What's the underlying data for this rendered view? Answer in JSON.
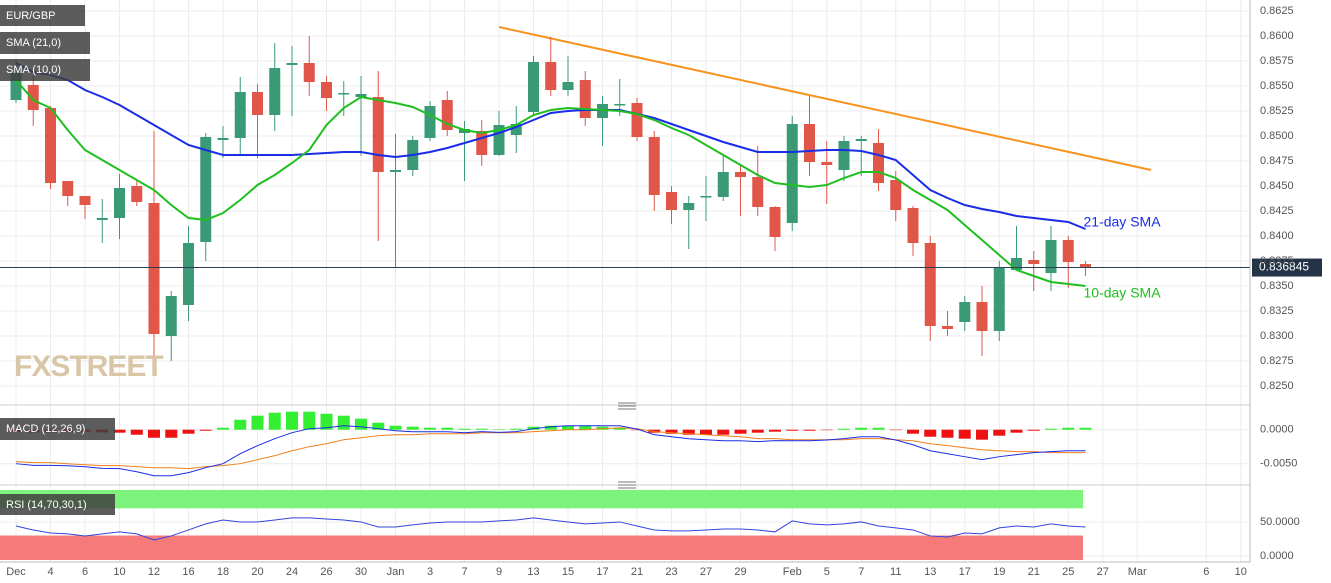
{
  "chart_data": [
    {
      "type": "candlestick",
      "title": "EUR/GBP",
      "watermark": "FXSTREET",
      "categories": [
        "Dec",
        null,
        "4",
        null,
        "6",
        null,
        "10",
        null,
        "12",
        null,
        "16",
        null,
        "18",
        null,
        "20",
        null,
        "24",
        null,
        "26",
        null,
        "30",
        null,
        "Jan",
        null,
        "3",
        null,
        "7",
        null,
        "9",
        null,
        "13",
        null,
        "15",
        null,
        "17",
        null,
        "21",
        null,
        "23",
        null,
        "27",
        null,
        "29",
        null,
        null,
        "Feb",
        null,
        "5",
        null,
        "7",
        null,
        "11",
        null,
        "13",
        null,
        "17",
        null,
        "19",
        null,
        "21",
        null,
        "25",
        null,
        "27",
        null,
        "Mar",
        null,
        null,
        null,
        "6",
        null,
        "10"
      ],
      "open": [
        0.8536,
        0.8551,
        0.8528,
        0.8455,
        0.844,
        0.8416,
        0.8418,
        0.845,
        0.8433,
        0.83,
        0.8331,
        0.8394,
        0.8496,
        0.8498,
        0.8544,
        0.8521,
        0.8571,
        0.8573,
        0.8554,
        0.8542,
        0.8539,
        0.8539,
        0.8464,
        0.8466,
        0.8498,
        0.8536,
        0.8503,
        0.8505,
        0.8481,
        0.8501,
        0.8524,
        0.8574,
        0.8546,
        0.8556,
        0.8518,
        0.8531,
        0.8533,
        0.8499,
        0.8444,
        0.8426,
        0.8439,
        0.8439,
        0.8464,
        0.8459,
        0.8429,
        0.8413,
        0.8512,
        0.8474,
        0.8466,
        0.8495,
        0.8493,
        0.8456,
        0.8428,
        0.8393,
        0.831,
        0.8314,
        0.8334,
        0.8305,
        0.8366,
        0.8376,
        0.8363,
        0.8396,
        0.8372,
        null,
        null,
        null,
        null,
        null,
        null,
        null,
        null,
        null
      ],
      "high": [
        0.8576,
        0.856,
        0.853,
        0.8455,
        0.844,
        0.8437,
        0.8462,
        0.8455,
        0.8505,
        0.8345,
        0.841,
        0.8503,
        0.851,
        0.8559,
        0.8552,
        0.8593,
        0.859,
        0.86,
        0.856,
        0.8555,
        0.856,
        0.8565,
        0.8502,
        0.85,
        0.8535,
        0.8545,
        0.8515,
        0.8516,
        0.8525,
        0.853,
        0.858,
        0.8599,
        0.858,
        0.8565,
        0.854,
        0.8557,
        0.8538,
        0.8505,
        0.845,
        0.844,
        0.846,
        0.848,
        0.847,
        0.849,
        0.843,
        0.852,
        0.854,
        0.8495,
        0.85,
        0.85,
        0.8507,
        0.8465,
        0.843,
        0.84,
        0.8325,
        0.834,
        0.835,
        0.8375,
        0.841,
        0.8385,
        0.841,
        0.84,
        0.8375,
        null,
        null,
        null,
        null,
        null,
        null,
        null,
        null,
        null
      ],
      "low": [
        0.8533,
        0.851,
        0.8447,
        0.843,
        0.8417,
        0.8393,
        0.8397,
        0.843,
        0.828,
        0.8275,
        0.8315,
        0.8375,
        0.8478,
        0.848,
        0.8478,
        0.8505,
        0.852,
        0.854,
        0.8525,
        0.852,
        0.848,
        0.8395,
        0.8369,
        0.846,
        0.8495,
        0.85,
        0.8455,
        0.847,
        0.848,
        0.8483,
        0.852,
        0.854,
        0.854,
        0.851,
        0.849,
        0.852,
        0.8495,
        0.8425,
        0.8412,
        0.8387,
        0.8415,
        0.8435,
        0.842,
        0.842,
        0.8385,
        0.8405,
        0.846,
        0.8432,
        0.8455,
        0.846,
        0.8445,
        0.8415,
        0.838,
        0.8295,
        0.83,
        0.8305,
        0.828,
        0.8295,
        0.8365,
        0.8345,
        0.8345,
        0.8348,
        0.836,
        null,
        null,
        null,
        null,
        null,
        null,
        null,
        null,
        null
      ],
      "close": [
        0.8563,
        0.8526,
        0.8453,
        0.844,
        0.8431,
        0.8418,
        0.8448,
        0.8434,
        0.8302,
        0.834,
        0.8393,
        0.8499,
        0.8498,
        0.8544,
        0.8521,
        0.8568,
        0.8573,
        0.8554,
        0.8538,
        0.8543,
        0.8542,
        0.8464,
        0.8466,
        0.8496,
        0.853,
        0.8506,
        0.8507,
        0.8481,
        0.8511,
        0.8512,
        0.8574,
        0.8546,
        0.8554,
        0.8518,
        0.8532,
        0.8532,
        0.8499,
        0.8441,
        0.8426,
        0.8433,
        0.844,
        0.8464,
        0.8459,
        0.8429,
        0.8399,
        0.8512,
        0.8474,
        0.8471,
        0.8495,
        0.8497,
        0.8453,
        0.8426,
        0.8393,
        0.831,
        0.8307,
        0.8334,
        0.8305,
        0.8368,
        0.8378,
        0.8372,
        0.8396,
        0.8374,
        0.8368,
        null,
        null,
        null,
        null,
        null,
        null,
        null,
        null,
        null
      ],
      "up_color": "#3a9a76",
      "down_color": "#e0574a",
      "series": [
        {
          "name": "SMA (21,0)",
          "color": "#1a2de6",
          "values": [
            0.8573,
            0.8564,
            0.8561,
            0.8556,
            0.8546,
            0.8539,
            0.8531,
            0.8521,
            0.8511,
            0.8501,
            0.8491,
            0.8486,
            0.8481,
            0.8481,
            0.8481,
            0.8481,
            0.8481,
            0.8482,
            0.8483,
            0.8484,
            0.8484,
            0.8481,
            0.8479,
            0.8481,
            0.8484,
            0.8488,
            0.8493,
            0.8498,
            0.8503,
            0.8509,
            0.8516,
            0.8523,
            0.8525,
            0.8526,
            0.8526,
            0.8526,
            0.8522,
            0.8518,
            0.8512,
            0.8506,
            0.85,
            0.8494,
            0.8489,
            0.8484,
            0.8484,
            0.8484,
            0.8485,
            0.8486,
            0.8486,
            0.8485,
            0.8481,
            0.8476,
            0.8461,
            0.8446,
            0.8438,
            0.8431,
            0.8427,
            0.8424,
            0.842,
            0.8418,
            0.8416,
            0.8414,
            0.8407,
            null,
            null,
            null,
            null,
            null,
            null,
            null,
            null,
            null
          ]
        },
        {
          "name": "SMA (10,0)",
          "color": "#1fbf1f",
          "values": [
            0.8556,
            0.8536,
            0.8528,
            0.8506,
            0.8486,
            0.8476,
            0.8466,
            0.8456,
            0.8446,
            0.8431,
            0.8418,
            0.8416,
            0.8423,
            0.8436,
            0.8451,
            0.8461,
            0.8473,
            0.8486,
            0.8511,
            0.8528,
            0.8539,
            0.8536,
            0.8533,
            0.8529,
            0.8521,
            0.8512,
            0.8506,
            0.8503,
            0.8506,
            0.8511,
            0.8521,
            0.8526,
            0.8528,
            0.8527,
            0.8526,
            0.8525,
            0.8522,
            0.8516,
            0.8508,
            0.8501,
            0.8491,
            0.8481,
            0.8471,
            0.8461,
            0.8453,
            0.8451,
            0.8449,
            0.8451,
            0.8458,
            0.8464,
            0.8464,
            0.8458,
            0.8446,
            0.8436,
            0.8426,
            0.8411,
            0.8396,
            0.8381,
            0.8366,
            0.836,
            0.8354,
            0.8352,
            0.835,
            null,
            null,
            null,
            null,
            null,
            null,
            null,
            null,
            null
          ]
        }
      ],
      "annotations": [
        {
          "text": "21-day SMA",
          "series": 0
        },
        {
          "text": "10-day SMA",
          "series": 1
        }
      ],
      "trendline": {
        "color": "#f7931e",
        "x": [
          28,
          65.8
        ],
        "values": [
          0.8609,
          0.8466
        ]
      },
      "last_price": 0.836845,
      "ylim": [
        0.8236,
        0.8636
      ],
      "yticks": [
        0.8625,
        {
          "value": 0.86,
          "label": "0.8600"
        },
        0.8575,
        {
          "value": 0.855,
          "label": "0.8550"
        },
        0.8525,
        {
          "value": 0.85,
          "label": "0.8500"
        },
        0.8475,
        {
          "value": 0.845,
          "label": "0.8450"
        },
        0.8425,
        {
          "value": 0.84,
          "label": "0.8400"
        },
        0.8375,
        {
          "value": 0.835,
          "label": "0.8350"
        },
        0.8325,
        {
          "value": 0.83,
          "label": "0.8300"
        },
        0.8275,
        {
          "value": 0.825,
          "label": "0.8250"
        }
      ],
      "grid": true
    },
    {
      "type": "macd",
      "title": "MACD (12,26,9)",
      "macd": [
        -0.005,
        -0.00525,
        -0.00525,
        -0.0053,
        -0.00545,
        -0.00569,
        -0.00573,
        -0.00618,
        -0.00677,
        -0.00677,
        -0.00632,
        -0.00559,
        -0.005,
        -0.00353,
        -0.00235,
        -0.00132,
        -0.00044,
        0.00015,
        0.00029,
        0.00059,
        0.00044,
        0.00015,
        -0.00015,
        -0.0003,
        -0.0003,
        -0.0003,
        -0.00044,
        -0.00029,
        -0.00039,
        -0.00029,
        0.00015,
        0.00044,
        0.00059,
        0.00059,
        0.00059,
        0.00058,
        0.0001,
        -0.00073,
        -0.00103,
        -0.00133,
        -0.00148,
        -0.00162,
        -0.00162,
        -0.00176,
        -0.00161,
        -0.00162,
        -0.00162,
        -0.00152,
        -0.00132,
        -0.00103,
        -0.00103,
        -0.00152,
        -0.00221,
        -0.00309,
        -0.00353,
        -0.00397,
        -0.00441,
        -0.00397,
        -0.00367,
        -0.00338,
        -0.00323,
        -0.00309,
        -0.00309,
        null,
        null,
        null,
        null,
        null,
        null,
        null,
        null,
        null
      ],
      "signal": [
        -0.0047,
        -0.00485,
        -0.00485,
        -0.005,
        -0.00515,
        -0.00529,
        -0.00529,
        -0.00544,
        -0.00559,
        -0.00559,
        -0.00573,
        -0.00544,
        -0.00529,
        -0.005,
        -0.00441,
        -0.00382,
        -0.00309,
        -0.0025,
        -0.00206,
        -0.00147,
        -0.00118,
        -0.00088,
        -0.00074,
        -0.00074,
        -0.00059,
        -0.00059,
        -0.00059,
        -0.00044,
        -0.00044,
        -0.00044,
        -0.00029,
        -0.00015,
        0,
        0,
        0.00015,
        0.00029,
        0.00015,
        -0.00029,
        -0.00044,
        -0.00059,
        -0.00074,
        -0.00088,
        -0.00103,
        -0.00132,
        -0.00132,
        -0.00147,
        -0.00147,
        -0.00147,
        -0.00147,
        -0.00132,
        -0.00132,
        -0.00147,
        -0.00162,
        -0.00206,
        -0.00235,
        -0.00265,
        -0.00294,
        -0.00309,
        -0.00323,
        -0.00323,
        -0.00338,
        -0.00338,
        -0.00338,
        null,
        null,
        null,
        null,
        null,
        null,
        null,
        null,
        null
      ],
      "histogram": [
        -0.0003,
        -0.0004,
        -0.0004,
        -0.0003,
        -0.0003,
        -0.0004,
        -0.00044,
        -0.00074,
        -0.00118,
        -0.00118,
        -0.00059,
        -0.00015,
        0.00029,
        0.00147,
        0.00206,
        0.0025,
        0.00265,
        0.00265,
        0.00235,
        0.00206,
        0.00162,
        0.00103,
        0.00059,
        0.00044,
        0.00029,
        0.00029,
        0.00015,
        0.00015,
        5e-05,
        0.00015,
        0.00044,
        0.00059,
        0.00059,
        0.00059,
        0.00044,
        0.00029,
        -5e-05,
        -0.00044,
        -0.00059,
        -0.00074,
        -0.00074,
        -0.00074,
        -0.00059,
        -0.00044,
        -0.00029,
        -0.00015,
        -0.00015,
        -5e-05,
        0.00015,
        0.00029,
        0.00029,
        -5e-05,
        -0.00059,
        -0.00103,
        -0.00118,
        -0.00132,
        -0.00147,
        -0.00088,
        -0.00044,
        -0.00015,
        0.00015,
        0.00029,
        0.00029,
        null,
        null,
        null,
        null,
        null,
        null,
        null,
        null,
        null
      ],
      "macd_color": "#1a2de6",
      "signal_color": "#f07f1a",
      "hist_up_color": "#33ee33",
      "hist_down_color": "#ee1111",
      "ylim": [
        -0.0074,
        0.0029
      ],
      "yticks": [
        {
          "value": 0,
          "label": "0.0000"
        },
        {
          "value": -0.005,
          "label": "-0.0050"
        }
      ]
    },
    {
      "type": "rsi",
      "title": "RSI (14,70,30,1)",
      "values": [
        44.1,
        38.2,
        33.8,
        32.4,
        29.4,
        32.4,
        35.3,
        32.4,
        23.5,
        29.4,
        38.2,
        47.1,
        52.9,
        50,
        50,
        52.9,
        55.9,
        55.9,
        54.4,
        52.9,
        50,
        42.6,
        42.6,
        45.6,
        48.5,
        50,
        50,
        50,
        51.5,
        52.9,
        55.9,
        52.9,
        50,
        47.1,
        48.5,
        50,
        44.1,
        38.2,
        36.8,
        36.8,
        38.2,
        39.7,
        39.7,
        38.2,
        35.3,
        51.5,
        47.1,
        45.6,
        47.1,
        50,
        44.1,
        41.2,
        38.2,
        29.4,
        27.9,
        33.8,
        32.4,
        41.2,
        44.1,
        42.6,
        47.1,
        44.1,
        42.6,
        null,
        null,
        null,
        null,
        null,
        null,
        null,
        null,
        null
      ],
      "color": "#3344dd",
      "overbought": 70,
      "oversold": 30,
      "overbought_color": "#7df27d",
      "oversold_color": "#f77a7a",
      "ylim": [
        -6,
        97
      ],
      "yticks": [
        {
          "value": 50,
          "label": "50.0000"
        },
        {
          "value": 0,
          "label": "0.0000"
        }
      ]
    }
  ]
}
